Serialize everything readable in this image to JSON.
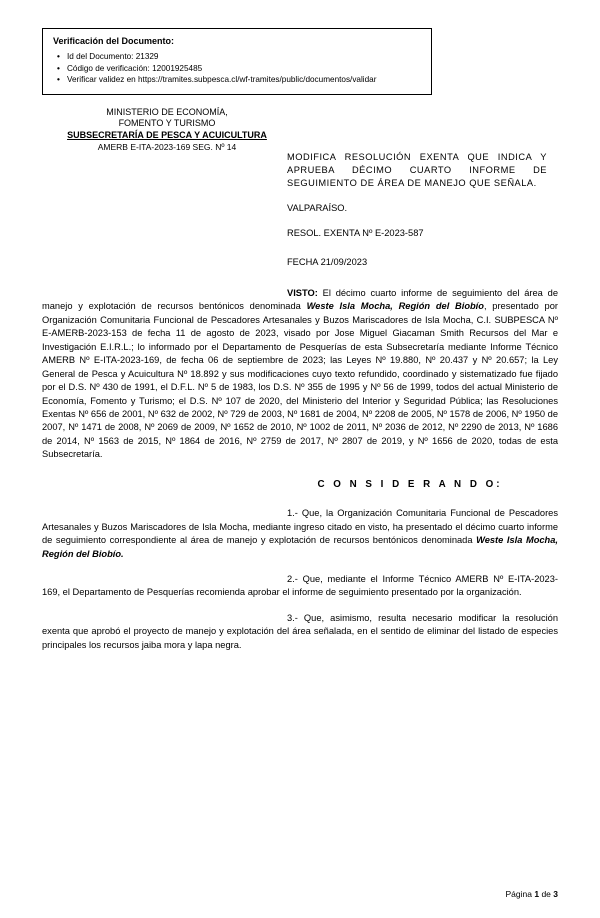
{
  "verification": {
    "title": "Verificación del Documento:",
    "items": [
      "Id del Documento: 21329",
      "Código de verificación: 12001925485",
      "Verificar validez en https://tramites.subpesca.cl/wf-tramites/public/documentos/validar"
    ]
  },
  "header": {
    "line1": "MINISTERIO DE ECONOMÍA,",
    "line2": "FOMENTO Y TURISMO",
    "line3": "SUBSECRETARÍA DE PESCA Y ACUICULTURA",
    "line4": "AMERB E-ITA-2023-169 SEG. Nº 14"
  },
  "subject": {
    "title": "MODIFICA RESOLUCIÓN EXENTA QUE INDICA Y APRUEBA DÉCIMO CUARTO INFORME DE SEGUIMIENTO DE ÁREA DE MANEJO QUE SEÑALA.",
    "city": "VALPARAÍSO.",
    "resol": "RESOL. EXENTA Nº E-2023-587",
    "fecha": "FECHA 21/09/2023"
  },
  "visto": {
    "lead": "VISTO:",
    "text_a": " El décimo cuarto informe de seguimiento del área de manejo y explotación de recursos bentónicos denominada ",
    "bold": "Weste Isla Mocha, Región del Biobío",
    "text_b": ", presentado por Organización Comunitaria Funcional de Pescadores Artesanales y Buzos Mariscadores de Isla Mocha, C.I. SUBPESCA Nº E-AMERB-2023-153 de fecha 11 de agosto de 2023, visado por Jose Miguel Giacaman Smith Recursos del Mar e Investigación E.I.R.L.; lo informado por el Departamento de Pesquerías de esta Subsecretaría mediante Informe Técnico AMERB Nº E-ITA-2023-169, de fecha 06 de septiembre de 2023; las Leyes Nº 19.880, Nº 20.437 y Nº 20.657; la Ley General de Pesca y Acuicultura Nº 18.892 y sus modificaciones cuyo texto refundido, coordinado y sistematizado fue fijado por el D.S. Nº 430 de 1991, el D.F.L. Nº 5 de 1983, los D.S. Nº 355 de 1995 y Nº 56 de 1999, todos del actual Ministerio de Economía, Fomento y Turismo; el D.S. Nº 107 de 2020, del Ministerio del Interior y Seguridad Pública; las Resoluciones Exentas Nº 656 de 2001, Nº 632 de 2002, Nº 729 de 2003, Nº 1681 de 2004, Nº 2208 de 2005, Nº 1578 de 2006, Nº 1950 de 2007, Nº 1471 de 2008, Nº 2069 de 2009, Nº 1652 de 2010, Nº 1002 de 2011, Nº 2036 de 2012, Nº 2290 de 2013, Nº 1686 de 2014, Nº 1563 de 2015, Nº 1864 de 2016, Nº 2759 de 2017, Nº 2807 de 2019, y Nº 1656 de 2020, todas de esta Subsecretaría."
  },
  "considerando": {
    "title": "C O N S I D E R A N D O:",
    "p1_a": "1.- Que, la Organización Comunitaria Funcional de Pescadores Artesanales y Buzos Mariscadores de Isla Mocha, mediante ingreso citado en visto, ha presentado el décimo cuarto informe de seguimiento correspondiente al área de manejo y explotación de recursos bentónicos denominada ",
    "p1_bold": "Weste Isla Mocha, Región del Biobío.",
    "p2": "2.- Que, mediante el Informe Técnico AMERB Nº E-ITA-2023-169, el Departamento de Pesquerías recomienda aprobar el informe de seguimiento presentado por la organización.",
    "p3": "3.- Que, asimismo, resulta necesario modificar la resolución exenta que aprobó el proyecto de manejo y explotación del área señalada, en el sentido de eliminar del listado de especies principales los recursos jaiba mora y lapa negra."
  },
  "footer": {
    "prefix": "Página ",
    "current": "1",
    "mid": " de ",
    "total": "3"
  }
}
